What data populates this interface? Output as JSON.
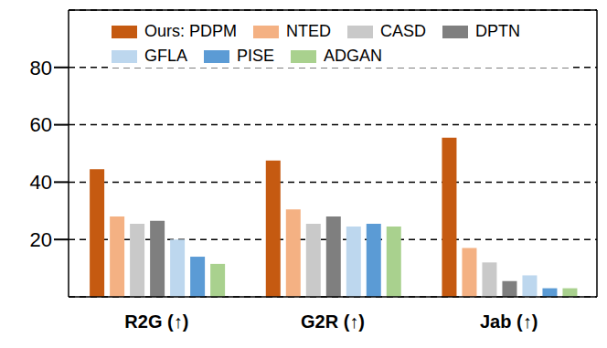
{
  "chart_data": {
    "type": "bar",
    "categories": [
      "R2G (↑)",
      "G2R (↑)",
      "Jab (↑)"
    ],
    "series": [
      {
        "name": "Ours: PDPM",
        "color": "#c55a11",
        "values": [
          44.5,
          47.5,
          55.5
        ]
      },
      {
        "name": "NTED",
        "color": "#f4b183",
        "values": [
          28,
          30.5,
          17
        ]
      },
      {
        "name": "CASD",
        "color": "#c9c9c9",
        "values": [
          25.5,
          25.5,
          12
        ]
      },
      {
        "name": "DPTN",
        "color": "#7f7f7f",
        "values": [
          26.5,
          28,
          5.5
        ]
      },
      {
        "name": "GFLA",
        "color": "#bdd7ee",
        "values": [
          20,
          24.5,
          7.5
        ]
      },
      {
        "name": "PISE",
        "color": "#5b9bd5",
        "values": [
          14,
          25.5,
          3
        ]
      },
      {
        "name": "ADGAN",
        "color": "#a9d18e",
        "values": [
          11.5,
          24.5,
          3
        ]
      }
    ],
    "ylim": [
      0,
      100
    ],
    "yticks": [
      20,
      40,
      60,
      80
    ],
    "grid": true,
    "legend": "top"
  }
}
